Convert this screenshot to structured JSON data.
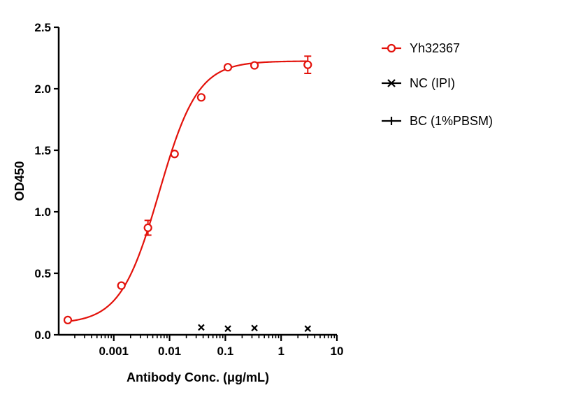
{
  "chart_data": {
    "type": "scatter",
    "title": "",
    "xlabel": "Antibody Conc. (μg/mL)",
    "ylabel": "OD450",
    "xscale": "log",
    "xlim": [
      0.00015,
      10
    ],
    "ylim": [
      0,
      2.5
    ],
    "x_ticks": [
      {
        "value": 0.001,
        "label": "0.001"
      },
      {
        "value": 0.01,
        "label": "0.01"
      },
      {
        "value": 0.1,
        "label": "0.1"
      },
      {
        "value": 1,
        "label": "1"
      },
      {
        "value": 10,
        "label": "10"
      }
    ],
    "y_ticks": [
      {
        "value": 0,
        "label": "0.0"
      },
      {
        "value": 0.5,
        "label": "0.5"
      },
      {
        "value": 1.0,
        "label": "1.0"
      },
      {
        "value": 1.5,
        "label": "1.5"
      },
      {
        "value": 2.0,
        "label": "2.0"
      },
      {
        "value": 2.5,
        "label": "2.5"
      }
    ],
    "grid": false,
    "legend_position": "right",
    "series": [
      {
        "name": "Yh32367",
        "color": "#e3120b",
        "marker": "open-circle",
        "fit": "4PL sigmoidal",
        "fit_params": {
          "bottom": 0.09,
          "top": 2.225,
          "ec50": 0.0065,
          "hill": 1.25
        },
        "points": [
          {
            "x": 0.00015,
            "y": 0.12,
            "err": 0
          },
          {
            "x": 0.00137,
            "y": 0.4,
            "err": 0
          },
          {
            "x": 0.0041,
            "y": 0.87,
            "err": 0.06
          },
          {
            "x": 0.0123,
            "y": 1.47,
            "err": 0
          },
          {
            "x": 0.037,
            "y": 1.93,
            "err": 0
          },
          {
            "x": 0.111,
            "y": 2.175,
            "err": 0
          },
          {
            "x": 0.333,
            "y": 2.19,
            "err": 0
          },
          {
            "x": 3.0,
            "y": 2.195,
            "err": 0.07
          }
        ]
      },
      {
        "name": "NC (IPI)",
        "color": "#000000",
        "marker": "x",
        "points": [
          {
            "x": 0.037,
            "y": 0.06
          },
          {
            "x": 0.111,
            "y": 0.05
          },
          {
            "x": 0.333,
            "y": 0.055
          },
          {
            "x": 3.0,
            "y": 0.05
          }
        ]
      },
      {
        "name": "BC (1%PBSM)",
        "color": "#000000",
        "marker": "plus",
        "points": []
      }
    ]
  }
}
